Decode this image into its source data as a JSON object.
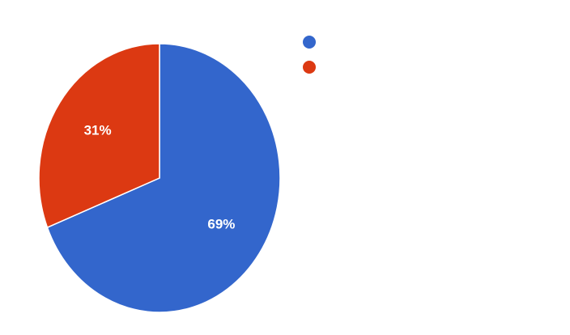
{
  "chart_data": {
    "type": "pie",
    "title": "",
    "slices": [
      {
        "label": "",
        "value": 69,
        "display": "69%",
        "color": "#3366cc"
      },
      {
        "label": "",
        "value": 31,
        "display": "31%",
        "color": "#dc3912"
      }
    ],
    "legend": "top-right",
    "start_angle_deg": 0,
    "direction": "clockwise"
  }
}
